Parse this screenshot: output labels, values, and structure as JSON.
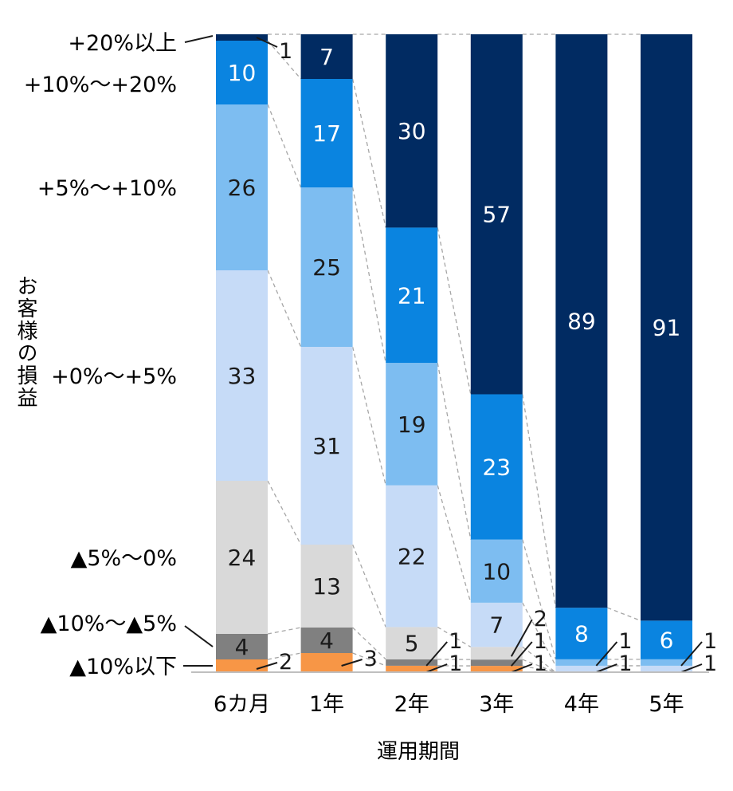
{
  "chart_data": {
    "type": "bar",
    "stacked": true,
    "percent": true,
    "xlabel": "運用期間",
    "ylabel": "お客様の損益",
    "categories": [
      "6カ月",
      "1年",
      "2年",
      "3年",
      "4年",
      "5年"
    ],
    "series": [
      {
        "name": "▲10%以下",
        "color": "#f79646",
        "values": [
          2,
          3,
          1,
          1,
          0,
          0
        ],
        "labels": [
          "2",
          "3",
          "1",
          "1",
          "",
          ""
        ]
      },
      {
        "name": "▲10%～▲5%",
        "color": "#808080",
        "values": [
          4,
          4,
          1,
          1,
          0,
          0
        ],
        "labels": [
          "4",
          "4",
          "1",
          "1",
          "",
          ""
        ]
      },
      {
        "name": "▲5%～0%",
        "color": "#d9d9d9",
        "values": [
          24,
          13,
          5,
          2,
          0,
          0
        ],
        "labels": [
          "24",
          "13",
          "5",
          "2",
          "",
          ""
        ]
      },
      {
        "name": "+0%～+5%",
        "color": "#c6dbf7",
        "values": [
          33,
          31,
          22,
          7,
          1,
          1
        ],
        "labels": [
          "33",
          "31",
          "22",
          "7",
          "1",
          "1"
        ]
      },
      {
        "name": "+5%～+10%",
        "color": "#7dbdf1",
        "values": [
          26,
          25,
          19,
          10,
          1,
          1
        ],
        "labels": [
          "26",
          "25",
          "19",
          "10",
          "1",
          "1"
        ]
      },
      {
        "name": "+10%～+20%",
        "color": "#0a84e0",
        "values": [
          10,
          17,
          21,
          23,
          8,
          6
        ],
        "labels": [
          "10",
          "17",
          "21",
          "23",
          "8",
          "6"
        ]
      },
      {
        "name": "+20%以上",
        "color": "#012b62",
        "values": [
          1,
          7,
          30,
          57,
          89,
          91
        ],
        "labels": [
          "1",
          "7",
          "30",
          "57",
          "89",
          "91"
        ]
      }
    ],
    "ylim": [
      0,
      100
    ]
  }
}
